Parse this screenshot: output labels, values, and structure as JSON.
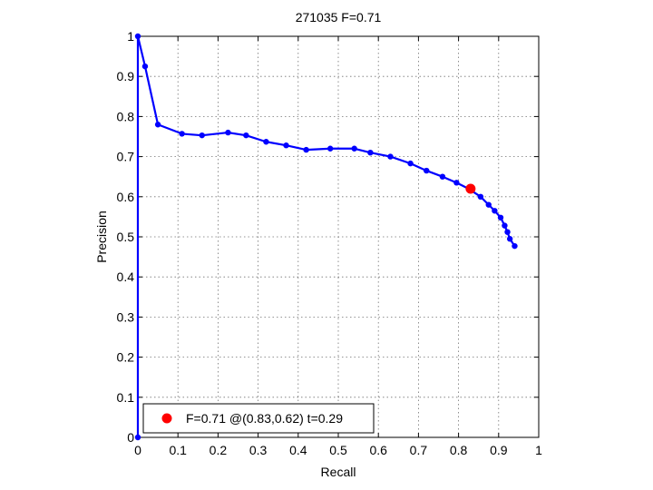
{
  "chart_data": {
    "type": "line",
    "title": "271035 F=0.71",
    "xlabel": "Recall",
    "ylabel": "Precision",
    "xlim": [
      0,
      1
    ],
    "ylim": [
      0,
      1
    ],
    "grid": true,
    "legend_position": "bottom-left",
    "x_ticks": [
      "0",
      "0.1",
      "0.2",
      "0.3",
      "0.4",
      "0.5",
      "0.6",
      "0.7",
      "0.8",
      "0.9",
      "1"
    ],
    "y_ticks": [
      "0",
      "0.1",
      "0.2",
      "0.3",
      "0.4",
      "0.5",
      "0.6",
      "0.7",
      "0.8",
      "0.9",
      "1"
    ],
    "series": [
      {
        "color": "#0000ff",
        "points": [
          [
            0.0,
            0.0
          ],
          [
            0.0,
            1.0
          ],
          [
            0.018,
            0.925
          ],
          [
            0.05,
            0.78
          ],
          [
            0.11,
            0.757
          ],
          [
            0.16,
            0.753
          ],
          [
            0.225,
            0.76
          ],
          [
            0.27,
            0.753
          ],
          [
            0.32,
            0.737
          ],
          [
            0.37,
            0.728
          ],
          [
            0.42,
            0.717
          ],
          [
            0.48,
            0.72
          ],
          [
            0.54,
            0.72
          ],
          [
            0.58,
            0.71
          ],
          [
            0.63,
            0.7
          ],
          [
            0.68,
            0.683
          ],
          [
            0.72,
            0.665
          ],
          [
            0.76,
            0.65
          ],
          [
            0.795,
            0.635
          ],
          [
            0.825,
            0.62
          ],
          [
            0.855,
            0.6
          ],
          [
            0.875,
            0.58
          ],
          [
            0.89,
            0.565
          ],
          [
            0.905,
            0.548
          ],
          [
            0.915,
            0.528
          ],
          [
            0.922,
            0.512
          ],
          [
            0.928,
            0.495
          ],
          [
            0.94,
            0.477
          ]
        ]
      }
    ],
    "highlight_point": {
      "x": 0.83,
      "y": 0.62,
      "color": "#ff0000"
    },
    "legend": {
      "label": "F=0.71 @(0.83,0.62) t=0.29",
      "marker_color": "#ff0000"
    }
  }
}
